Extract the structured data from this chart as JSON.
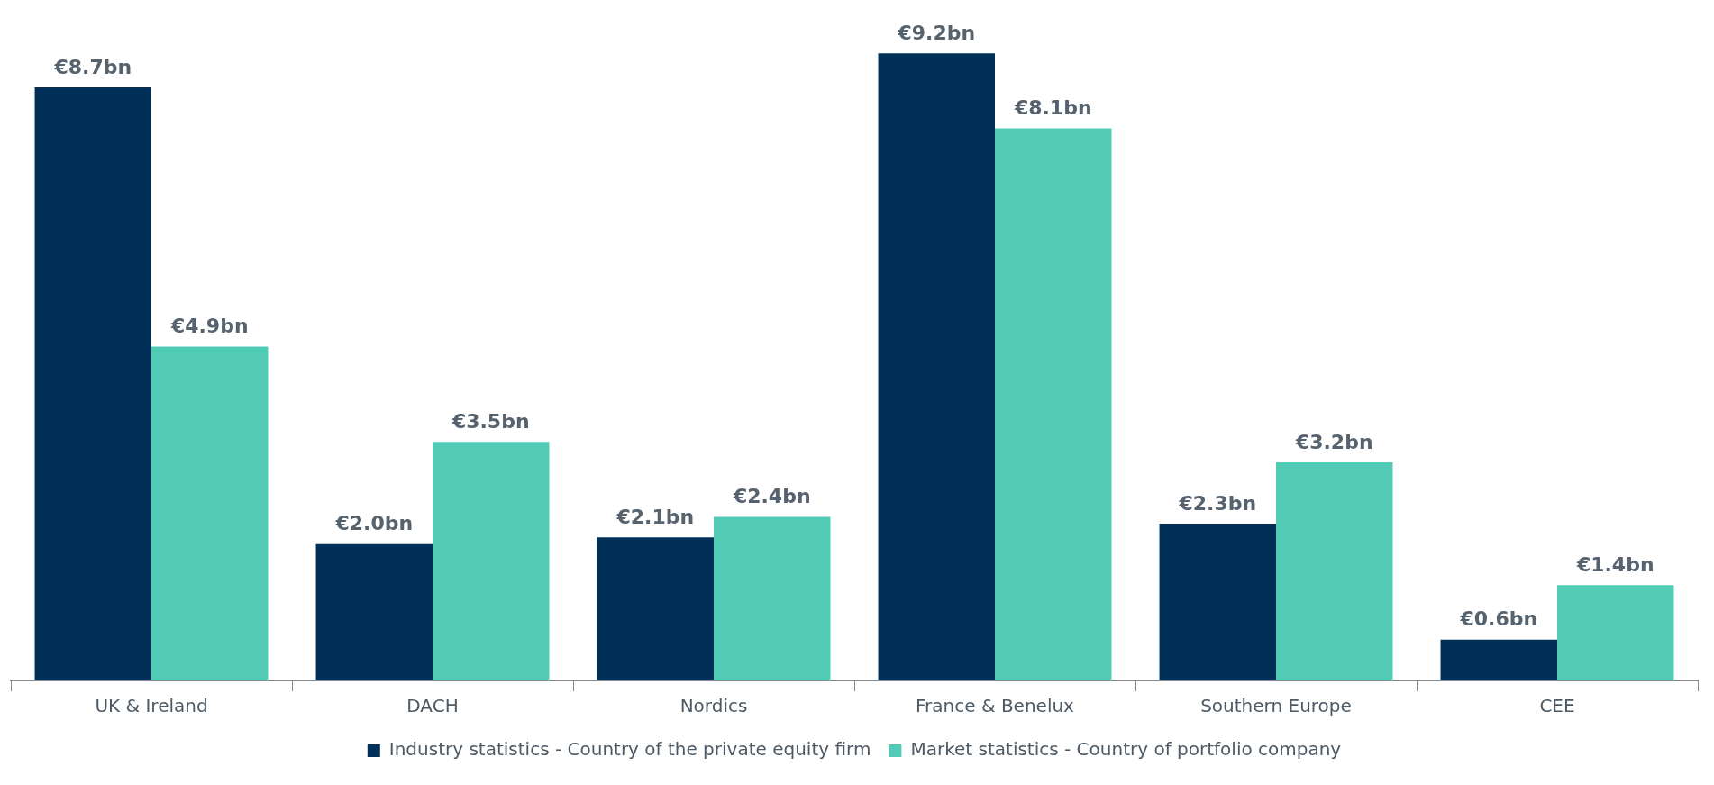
{
  "chart_data": {
    "type": "bar",
    "categories": [
      "UK & Ireland",
      "DACH",
      "Nordics",
      "France & Benelux",
      "Southern Europe",
      "CEE"
    ],
    "series": [
      {
        "name": "Industry statistics - Country of the private equity firm",
        "color": "#003057",
        "values": [
          8.7,
          2.0,
          2.1,
          9.2,
          2.3,
          0.6
        ],
        "value_labels": [
          "€8.7bn",
          "€2.0bn",
          "€2.1bn",
          "€9.2bn",
          "€2.3bn",
          "€0.6bn"
        ]
      },
      {
        "name": "Market statistics - Country of portfolio company",
        "color": "#52cbb6",
        "values": [
          4.9,
          3.5,
          2.4,
          8.1,
          3.2,
          1.4
        ],
        "value_labels": [
          "€4.9bn",
          "€3.5bn",
          "€2.4bn",
          "€8.1bn",
          "€3.2bn",
          "€1.4bn"
        ]
      }
    ],
    "legend": "bottom",
    "grid": false
  }
}
